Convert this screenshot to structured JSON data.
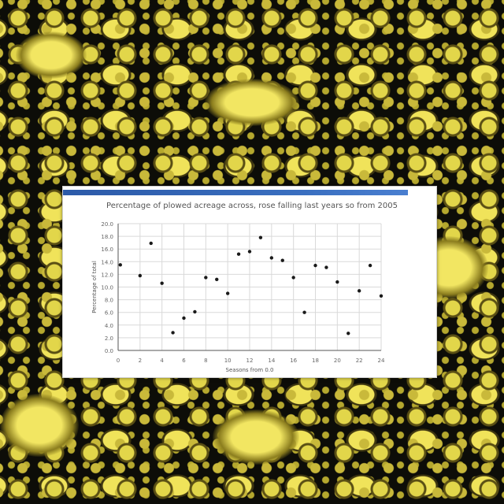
{
  "chart_data": {
    "type": "scatter",
    "title": "Percentage of plowed acreage across, rose falling last years so from 2005",
    "xlabel": "Seasons from 0.0",
    "ylabel": "Percentage of total",
    "xlim": [
      0,
      24
    ],
    "ylim": [
      0.0,
      20.0
    ],
    "x_ticks": [
      "0",
      "2",
      "4",
      "6",
      "8",
      "10",
      "12",
      "14",
      "16",
      "18",
      "20",
      "22",
      "24"
    ],
    "y_ticks": [
      "0.0",
      "2.0",
      "4.0",
      "6.0",
      "8.0",
      "10.0",
      "12.0",
      "14.0",
      "16.0",
      "18.0",
      "20.0"
    ],
    "grid": true,
    "series": [
      {
        "color": "#1a1a1a",
        "points": [
          {
            "x": 0.2,
            "y": 13.5
          },
          {
            "x": 2.0,
            "y": 11.8
          },
          {
            "x": 3.0,
            "y": 16.9
          },
          {
            "x": 4.0,
            "y": 10.6
          },
          {
            "x": 5.0,
            "y": 2.8
          },
          {
            "x": 6.0,
            "y": 5.1
          },
          {
            "x": 7.0,
            "y": 6.1
          },
          {
            "x": 8.0,
            "y": 11.5
          },
          {
            "x": 9.0,
            "y": 11.2
          },
          {
            "x": 10.0,
            "y": 9.0
          },
          {
            "x": 11.0,
            "y": 15.2
          },
          {
            "x": 12.0,
            "y": 15.6
          },
          {
            "x": 13.0,
            "y": 17.8
          },
          {
            "x": 14.0,
            "y": 14.6
          },
          {
            "x": 15.0,
            "y": 14.2
          },
          {
            "x": 16.0,
            "y": 11.5
          },
          {
            "x": 17.0,
            "y": 6.0
          },
          {
            "x": 18.0,
            "y": 13.4
          },
          {
            "x": 19.0,
            "y": 13.1
          },
          {
            "x": 20.0,
            "y": 10.8
          },
          {
            "x": 21.0,
            "y": 2.7
          },
          {
            "x": 22.0,
            "y": 9.4
          },
          {
            "x": 23.0,
            "y": 13.4
          },
          {
            "x": 24.0,
            "y": 8.6
          }
        ]
      }
    ]
  }
}
